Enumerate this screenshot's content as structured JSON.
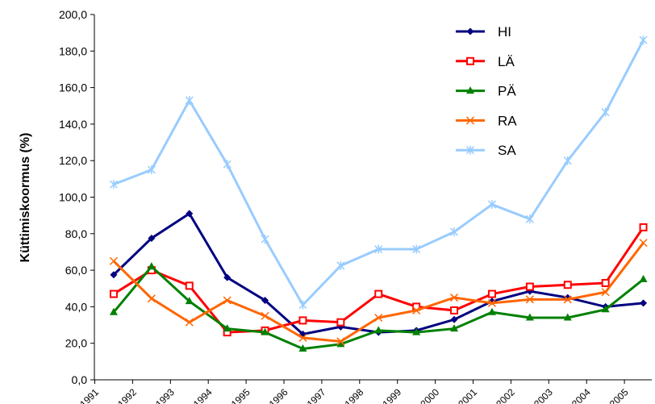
{
  "chart_data": {
    "type": "line",
    "y_label": "Küttimiskoormus (%)",
    "categories": [
      "1991",
      "1992",
      "1993",
      "1994",
      "1995",
      "1996",
      "1997",
      "1998",
      "1999",
      "2000",
      "2001",
      "2002",
      "2003",
      "2004",
      "2005"
    ],
    "series": [
      {
        "name": "HI",
        "color": "#000080",
        "marker": "diamond",
        "values": [
          57.5,
          77.5,
          91,
          56,
          43.5,
          25,
          29,
          26,
          27,
          33,
          43,
          48.5,
          45,
          40,
          42
        ]
      },
      {
        "name": "LÄ",
        "color": "#ff0000",
        "marker": "square",
        "values": [
          47,
          60,
          51.5,
          26,
          27,
          32.5,
          31.5,
          47,
          40,
          38,
          47,
          51,
          52,
          53,
          83.5
        ]
      },
      {
        "name": "PÄ",
        "color": "#008000",
        "marker": "triangle",
        "values": [
          37,
          62,
          43,
          28,
          26,
          17,
          19.5,
          27,
          26,
          28,
          37,
          34,
          34,
          38.5,
          55
        ]
      },
      {
        "name": "RA",
        "color": "#ff6600",
        "marker": "x",
        "values": [
          65,
          44.5,
          31.5,
          43.5,
          35,
          23,
          21,
          34,
          38,
          45,
          42,
          44,
          44,
          48,
          75
        ]
      },
      {
        "name": "SA",
        "color": "#99ccff",
        "marker": "star",
        "values": [
          107,
          115,
          153,
          118,
          77,
          41,
          62.5,
          71.5,
          71.5,
          81,
          96,
          88,
          120,
          146.5,
          186
        ]
      }
    ],
    "ylim": [
      0,
      200
    ],
    "yticks": [
      {
        "value": 0,
        "label": "0,0"
      },
      {
        "value": 20,
        "label": "20,0"
      },
      {
        "value": 40,
        "label": "40,0"
      },
      {
        "value": 60,
        "label": "60,0"
      },
      {
        "value": 80,
        "label": "80,0"
      },
      {
        "value": 100,
        "label": "100,0"
      },
      {
        "value": 120,
        "label": "120,0"
      },
      {
        "value": 140,
        "label": "140,0"
      },
      {
        "value": 160,
        "label": "160,0"
      },
      {
        "value": 180,
        "label": "180,0"
      },
      {
        "value": 200,
        "label": "200,0"
      }
    ],
    "grid": false,
    "legend": "top-right"
  }
}
